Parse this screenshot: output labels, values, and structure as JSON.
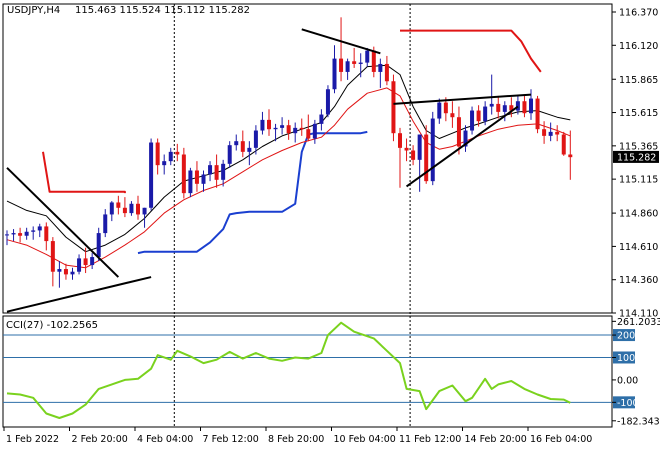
{
  "header": {
    "symbol": "USDJPY,H4",
    "ohlc": "115.463 115.524 115.112 115.282"
  },
  "indicator": {
    "label": "CCI(27) -102.2565"
  },
  "colors": {
    "up_candle": "#1a1aa8",
    "down_candle": "#e01515",
    "ma_fast": "#000000",
    "ma_slow": "#e01515",
    "ichimoku_red": "#e01515",
    "ichimoku_blue": "#1a3fd0",
    "cci_line": "#7ad21e",
    "level_line": "#2e6fa8",
    "current_price_bg": "#000000"
  },
  "chart_data": [
    {
      "type": "candlestick",
      "title": "",
      "symbol": "USDJPY",
      "timeframe": "H4",
      "ylim": [
        114.11,
        116.43
      ],
      "y_ticks": [
        "116.370",
        "116.120",
        "115.865",
        "115.615",
        "115.365",
        "115.115",
        "114.860",
        "114.610",
        "114.360",
        "114.110"
      ],
      "y_tick_values": [
        116.37,
        116.12,
        115.865,
        115.615,
        115.365,
        115.115,
        114.86,
        114.61,
        114.36,
        114.11
      ],
      "x_ticks": [
        "1 Feb 2022",
        "2 Feb 20:00",
        "4 Feb 04:00",
        "7 Feb 12:00",
        "8 Feb 20:00",
        "10 Feb 04:00",
        "11 Feb 12:00",
        "14 Feb 20:00",
        "16 Feb 04:00"
      ],
      "x_tick_index": [
        0,
        10,
        20,
        30,
        40,
        50,
        60,
        70,
        80
      ],
      "current_price": "115.282",
      "candles": [
        [
          114.7,
          114.73,
          114.62,
          114.7
        ],
        [
          114.7,
          114.74,
          114.65,
          114.71
        ],
        [
          114.71,
          114.75,
          114.64,
          114.69
        ],
        [
          114.69,
          114.75,
          114.66,
          114.72
        ],
        [
          114.72,
          114.76,
          114.66,
          114.73
        ],
        [
          114.73,
          114.78,
          114.68,
          114.76
        ],
        [
          114.76,
          114.79,
          114.58,
          114.65
        ],
        [
          114.65,
          114.68,
          114.31,
          114.42
        ],
        [
          114.42,
          114.5,
          114.3,
          114.44
        ],
        [
          114.44,
          114.48,
          114.36,
          114.4
        ],
        [
          114.4,
          114.45,
          114.36,
          114.42
        ],
        [
          114.42,
          114.55,
          114.4,
          114.52
        ],
        [
          114.52,
          114.6,
          114.41,
          114.47
        ],
        [
          114.47,
          114.56,
          114.44,
          114.53
        ],
        [
          114.53,
          114.75,
          114.5,
          114.71
        ],
        [
          114.71,
          114.89,
          114.68,
          114.85
        ],
        [
          114.85,
          114.95,
          114.8,
          114.94
        ],
        [
          114.94,
          114.99,
          114.85,
          114.9
        ],
        [
          114.9,
          114.98,
          114.83,
          114.86
        ],
        [
          114.86,
          114.95,
          114.84,
          114.93
        ],
        [
          114.93,
          114.99,
          114.81,
          114.85
        ],
        [
          114.85,
          114.9,
          114.75,
          114.9
        ],
        [
          114.9,
          115.42,
          114.88,
          115.39
        ],
        [
          115.39,
          115.42,
          115.15,
          115.22
        ],
        [
          115.22,
          115.3,
          115.15,
          115.25
        ],
        [
          115.25,
          115.35,
          115.22,
          115.32
        ],
        [
          115.32,
          115.38,
          115.25,
          115.3
        ],
        [
          115.3,
          115.35,
          114.97,
          115.01
        ],
        [
          115.01,
          115.2,
          114.98,
          115.18
        ],
        [
          115.18,
          115.25,
          115.02,
          115.08
        ],
        [
          115.08,
          115.18,
          115.02,
          115.15
        ],
        [
          115.15,
          115.25,
          115.1,
          115.22
        ],
        [
          115.22,
          115.3,
          115.05,
          115.11
        ],
        [
          115.11,
          115.26,
          115.06,
          115.23
        ],
        [
          115.23,
          115.4,
          115.2,
          115.37
        ],
        [
          115.37,
          115.45,
          115.33,
          115.4
        ],
        [
          115.4,
          115.48,
          115.28,
          115.32
        ],
        [
          115.32,
          115.4,
          115.22,
          115.35
        ],
        [
          115.35,
          115.52,
          115.3,
          115.48
        ],
        [
          115.48,
          115.62,
          115.45,
          115.56
        ],
        [
          115.56,
          115.64,
          115.44,
          115.49
        ],
        [
          115.49,
          115.53,
          115.4,
          115.5
        ],
        [
          115.5,
          115.58,
          115.45,
          115.52
        ],
        [
          115.52,
          115.56,
          115.41,
          115.46
        ],
        [
          115.46,
          115.54,
          115.39,
          115.5
        ],
        [
          115.5,
          115.57,
          115.44,
          115.49
        ],
        [
          115.49,
          115.6,
          115.4,
          115.42
        ],
        [
          115.42,
          115.56,
          115.38,
          115.53
        ],
        [
          115.53,
          115.64,
          115.48,
          115.6
        ],
        [
          115.6,
          115.82,
          115.58,
          115.79
        ],
        [
          115.79,
          116.12,
          115.76,
          116.02
        ],
        [
          116.02,
          116.33,
          115.85,
          115.92
        ],
        [
          115.92,
          116.02,
          115.86,
          116.0
        ],
        [
          116.0,
          116.1,
          115.95,
          115.98
        ],
        [
          115.98,
          116.06,
          115.88,
          115.99
        ],
        [
          115.99,
          116.1,
          115.96,
          116.08
        ],
        [
          116.08,
          116.11,
          115.88,
          115.92
        ],
        [
          115.92,
          116.02,
          115.8,
          115.98
        ],
        [
          115.98,
          116.04,
          115.82,
          115.85
        ],
        [
          115.85,
          115.9,
          115.4,
          115.46
        ],
        [
          115.46,
          115.5,
          115.05,
          115.35
        ],
        [
          115.35,
          115.42,
          115.25,
          115.33
        ],
        [
          115.33,
          115.37,
          115.22,
          115.26
        ],
        [
          115.26,
          115.45,
          115.02,
          115.45
        ],
        [
          115.45,
          115.52,
          115.08,
          115.1
        ],
        [
          115.1,
          115.62,
          115.07,
          115.57
        ],
        [
          115.57,
          115.72,
          115.53,
          115.69
        ],
        [
          115.69,
          115.73,
          115.55,
          115.61
        ],
        [
          115.61,
          115.7,
          115.5,
          115.58
        ],
        [
          115.58,
          115.66,
          115.3,
          115.36
        ],
        [
          115.36,
          115.52,
          115.32,
          115.48
        ],
        [
          115.48,
          115.66,
          115.45,
          115.63
        ],
        [
          115.63,
          115.67,
          115.51,
          115.55
        ],
        [
          115.55,
          115.7,
          115.52,
          115.66
        ],
        [
          115.66,
          115.9,
          115.6,
          115.68
        ],
        [
          115.68,
          115.74,
          115.57,
          115.62
        ],
        [
          115.62,
          115.7,
          115.55,
          115.67
        ],
        [
          115.67,
          115.73,
          115.58,
          115.63
        ],
        [
          115.63,
          115.74,
          115.6,
          115.7
        ],
        [
          115.7,
          115.75,
          115.58,
          115.61
        ],
        [
          115.61,
          115.79,
          115.56,
          115.72
        ],
        [
          115.72,
          115.74,
          115.46,
          115.49
        ],
        [
          115.49,
          115.55,
          115.38,
          115.44
        ],
        [
          115.44,
          115.54,
          115.4,
          115.47
        ],
        [
          115.47,
          115.52,
          115.4,
          115.45
        ],
        [
          115.45,
          115.47,
          115.29,
          115.3
        ],
        [
          115.3,
          115.48,
          115.11,
          115.28
        ]
      ],
      "ma_fast": [
        [
          0,
          114.95
        ],
        [
          3,
          114.88
        ],
        [
          6,
          114.84
        ],
        [
          9,
          114.68
        ],
        [
          12,
          114.57
        ],
        [
          15,
          114.62
        ],
        [
          18,
          114.7
        ],
        [
          21,
          114.82
        ],
        [
          24,
          114.98
        ],
        [
          27,
          115.1
        ],
        [
          30,
          115.14
        ],
        [
          33,
          115.18
        ],
        [
          36,
          115.26
        ],
        [
          39,
          115.36
        ],
        [
          42,
          115.44
        ],
        [
          45,
          115.49
        ],
        [
          48,
          115.54
        ],
        [
          50,
          115.66
        ],
        [
          52,
          115.82
        ],
        [
          55,
          115.96
        ],
        [
          58,
          115.97
        ],
        [
          60,
          115.9
        ],
        [
          62,
          115.66
        ],
        [
          64,
          115.48
        ],
        [
          66,
          115.42
        ],
        [
          68,
          115.46
        ],
        [
          70,
          115.5
        ],
        [
          72,
          115.53
        ],
        [
          75,
          115.58
        ],
        [
          78,
          115.62
        ],
        [
          81,
          115.63
        ],
        [
          84,
          115.58
        ],
        [
          86,
          115.56
        ]
      ],
      "ma_slow": [
        [
          0,
          114.66
        ],
        [
          3,
          114.62
        ],
        [
          6,
          114.55
        ],
        [
          9,
          114.47
        ],
        [
          12,
          114.45
        ],
        [
          15,
          114.53
        ],
        [
          18,
          114.62
        ],
        [
          21,
          114.72
        ],
        [
          24,
          114.86
        ],
        [
          27,
          114.96
        ],
        [
          30,
          115.03
        ],
        [
          33,
          115.08
        ],
        [
          36,
          115.17
        ],
        [
          39,
          115.26
        ],
        [
          42,
          115.33
        ],
        [
          45,
          115.39
        ],
        [
          48,
          115.43
        ],
        [
          50,
          115.52
        ],
        [
          52,
          115.64
        ],
        [
          55,
          115.76
        ],
        [
          58,
          115.8
        ],
        [
          60,
          115.74
        ],
        [
          62,
          115.55
        ],
        [
          64,
          115.39
        ],
        [
          66,
          115.34
        ],
        [
          68,
          115.36
        ],
        [
          70,
          115.4
        ],
        [
          72,
          115.44
        ],
        [
          75,
          115.49
        ],
        [
          78,
          115.52
        ],
        [
          81,
          115.53
        ],
        [
          84,
          115.48
        ],
        [
          86,
          115.44
        ]
      ],
      "ichimoku_red": [
        [
          5.5,
          115.32
        ],
        [
          6.5,
          115.02
        ],
        [
          18,
          115.02
        ],
        [
          18,
          115.01
        ]
      ],
      "ichimoku_red_2": [
        [
          60,
          116.23
        ],
        [
          77,
          116.23
        ],
        [
          78.5,
          116.15
        ],
        [
          80,
          116.02
        ],
        [
          81.5,
          115.92
        ]
      ],
      "ichimoku_blue": [
        [
          20,
          114.56
        ],
        [
          21,
          114.57
        ],
        [
          29,
          114.57
        ],
        [
          31,
          114.64
        ],
        [
          33,
          114.74
        ],
        [
          34,
          114.85
        ],
        [
          35,
          114.86
        ],
        [
          37,
          114.87
        ],
        [
          42,
          114.87
        ],
        [
          44,
          114.93
        ],
        [
          45,
          115.32
        ],
        [
          46,
          115.45
        ],
        [
          47,
          115.46
        ],
        [
          54,
          115.46
        ],
        [
          55,
          115.47
        ]
      ],
      "trendlines": [
        [
          [
            0,
            115.2
          ],
          [
            17,
            114.38
          ]
        ],
        [
          [
            0,
            114.12
          ],
          [
            22,
            114.38
          ]
        ],
        [
          [
            45,
            116.24
          ],
          [
            57,
            116.06
          ]
        ],
        [
          [
            59,
            115.68
          ],
          [
            80,
            115.75
          ]
        ],
        [
          [
            61,
            115.06
          ],
          [
            78,
            115.66
          ]
        ]
      ]
    },
    {
      "type": "line",
      "title": "CCI(27) -102.2565",
      "ylim": [
        -210,
        285
      ],
      "y_ticks": [
        "261.2033",
        "200",
        "100",
        "0.00",
        "-100",
        "-182.3434"
      ],
      "y_tick_values": [
        261.2033,
        200,
        100,
        0,
        -100,
        -182.3434
      ],
      "levels": [
        200,
        100,
        -100
      ],
      "series": [
        {
          "values": [
            [
              0,
              -60
            ],
            [
              2,
              -65
            ],
            [
              4,
              -80
            ],
            [
              6,
              -150
            ],
            [
              8,
              -170
            ],
            [
              10,
              -150
            ],
            [
              12,
              -110
            ],
            [
              14,
              -40
            ],
            [
              16,
              -20
            ],
            [
              18,
              0
            ],
            [
              20,
              5
            ],
            [
              22,
              50
            ],
            [
              23,
              110
            ],
            [
              25,
              90
            ],
            [
              26,
              130
            ],
            [
              28,
              105
            ],
            [
              30,
              75
            ],
            [
              32,
              90
            ],
            [
              34,
              125
            ],
            [
              36,
              95
            ],
            [
              38,
              120
            ],
            [
              40,
              95
            ],
            [
              42,
              85
            ],
            [
              44,
              100
            ],
            [
              46,
              95
            ],
            [
              48,
              120
            ],
            [
              49,
              200
            ],
            [
              51,
              255
            ],
            [
              53,
              215
            ],
            [
              56,
              185
            ],
            [
              58,
              130
            ],
            [
              60,
              75
            ],
            [
              61,
              -40
            ],
            [
              63,
              -50
            ],
            [
              64,
              -130
            ],
            [
              66,
              -50
            ],
            [
              68,
              -25
            ],
            [
              70,
              -95
            ],
            [
              71,
              -80
            ],
            [
              73,
              5
            ],
            [
              74,
              -40
            ],
            [
              75,
              -20
            ],
            [
              77,
              -5
            ],
            [
              79,
              -40
            ],
            [
              81,
              -65
            ],
            [
              83,
              -85
            ],
            [
              85,
              -88
            ],
            [
              86,
              -102
            ]
          ]
        }
      ]
    }
  ]
}
